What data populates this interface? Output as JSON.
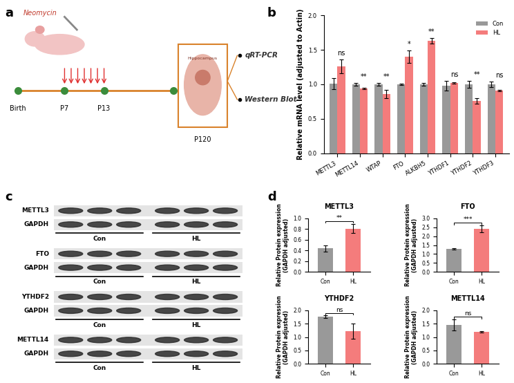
{
  "panel_labels": [
    "a",
    "b",
    "c",
    "d"
  ],
  "diagram": {
    "treatment": "Neomycin",
    "timeline": [
      "Birth",
      "P7",
      "P13",
      "P120"
    ],
    "tissue": "Hippocampus",
    "assays": [
      "qRT-PCR",
      "Western Blot"
    ]
  },
  "chart_data": [
    {
      "type": "bar",
      "y_label": "Relative mRNA level (adjusted to Actin)",
      "categories": [
        "METTL3",
        "METTL14",
        "WTAP",
        "FTO",
        "ALKBH5",
        "YTHDF1",
        "YTHDF2",
        "YTHDF3"
      ],
      "series": [
        {
          "name": "Con",
          "color": "#999999",
          "values": [
            1.01,
            1.0,
            1.0,
            1.0,
            1.0,
            0.98,
            1.0,
            1.0
          ],
          "errors": [
            0.08,
            0.02,
            0.02,
            0.01,
            0.02,
            0.07,
            0.05,
            0.04
          ]
        },
        {
          "name": "HL",
          "color": "#f47c7c",
          "values": [
            1.26,
            0.94,
            0.86,
            1.4,
            1.63,
            1.02,
            0.76,
            0.91
          ],
          "errors": [
            0.1,
            0.01,
            0.06,
            0.09,
            0.04,
            0.01,
            0.04,
            0.01
          ]
        }
      ],
      "annotations": [
        "ns",
        "**",
        "**",
        "*",
        "**",
        "ns",
        "**",
        "ns"
      ],
      "ylim": [
        0.0,
        2.0
      ],
      "yticks": [
        0.0,
        0.5,
        1.0,
        1.5,
        2.0
      ],
      "legend": "upper right"
    },
    {
      "type": "bar",
      "title": "METTL3",
      "y_label": "Relative Protein expression\n(GAPDH adjusted)",
      "categories": [
        "Con",
        "HL"
      ],
      "values": [
        0.44,
        0.81
      ],
      "errors": [
        0.06,
        0.09
      ],
      "colors": [
        "#999999",
        "#f47c7c"
      ],
      "annotation": "**",
      "ylim": [
        0.0,
        1.0
      ],
      "yticks": [
        0.0,
        0.2,
        0.4,
        0.6,
        0.8,
        1.0
      ]
    },
    {
      "type": "bar",
      "title": "FTO",
      "y_label": "Relative Protein expression\n(GAPDH adjusted)",
      "categories": [
        "Con",
        "HL"
      ],
      "values": [
        1.28,
        2.4
      ],
      "errors": [
        0.04,
        0.2
      ],
      "colors": [
        "#999999",
        "#f47c7c"
      ],
      "annotation": "***",
      "ylim": [
        0.0,
        3.0
      ],
      "yticks": [
        0.0,
        0.5,
        1.0,
        1.5,
        2.0,
        2.5,
        3.0
      ]
    },
    {
      "type": "bar",
      "title": "YTHDF2",
      "y_label": "Relative Protein expression\n(GAPDH adjusted)",
      "categories": [
        "Con",
        "HL"
      ],
      "values": [
        1.76,
        1.22
      ],
      "errors": [
        0.04,
        0.28
      ],
      "colors": [
        "#999999",
        "#f47c7c"
      ],
      "annotation": "ns",
      "ylim": [
        0.0,
        2.0
      ],
      "yticks": [
        0.0,
        0.5,
        1.0,
        1.5,
        2.0
      ]
    },
    {
      "type": "bar",
      "title": "METTL14",
      "y_label": "Relative Protein expression\n(GAPDH adjusted)",
      "categories": [
        "Con",
        "HL"
      ],
      "values": [
        1.45,
        1.19
      ],
      "errors": [
        0.2,
        0.02
      ],
      "colors": [
        "#999999",
        "#f47c7c"
      ],
      "annotation": "ns",
      "ylim": [
        0.0,
        2.0
      ],
      "yticks": [
        0.0,
        0.5,
        1.0,
        1.5,
        2.0
      ]
    }
  ],
  "blots": {
    "groups": [
      "Con",
      "HL"
    ],
    "pairs": [
      [
        "METTL3",
        "GAPDH"
      ],
      [
        "FTO",
        "GAPDH"
      ],
      [
        "YTHDF2",
        "GAPDH"
      ],
      [
        "METTL14",
        "GAPDH"
      ]
    ]
  }
}
